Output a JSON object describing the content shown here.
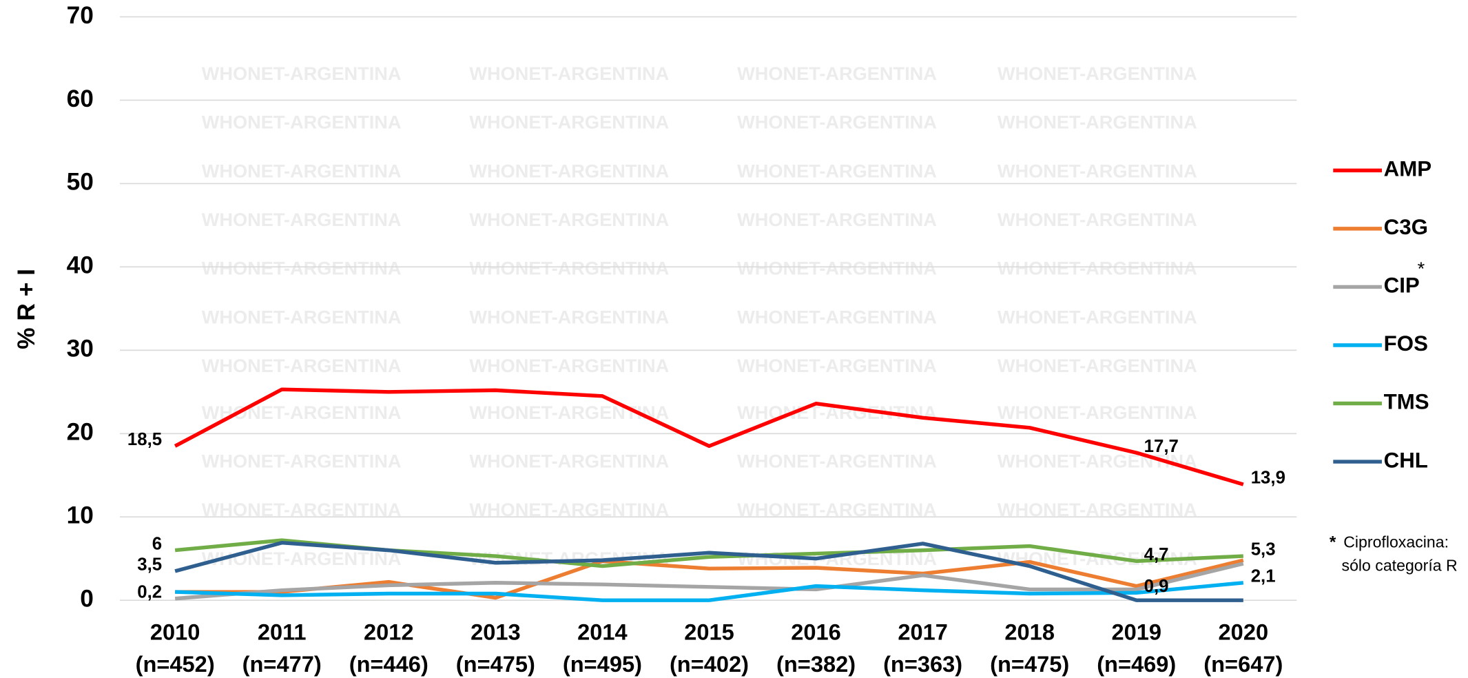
{
  "chart_data": {
    "type": "line",
    "y_axis_label": "% R + I",
    "categories": [
      "2010",
      "2011",
      "2012",
      "2013",
      "2014",
      "2015",
      "2016",
      "2017",
      "2018",
      "2019",
      "2020"
    ],
    "sample_sizes": [
      "(n=452)",
      "(n=477)",
      "(n=446)",
      "(n=475)",
      "(n=495)",
      "(n=402)",
      "(n=382)",
      "(n=363)",
      "(n=475)",
      "(n=469)",
      "(n=647)"
    ],
    "ylim": [
      0,
      70
    ],
    "yticks": [
      0,
      10,
      20,
      30,
      40,
      50,
      60,
      70
    ],
    "grid": true,
    "legend": "right",
    "watermark": "WHONET-ARGENTINA",
    "footnote_marker": "*",
    "footnote": [
      "Ciprofloxacina:",
      "sólo categoría R"
    ],
    "series": [
      {
        "name": "AMP",
        "color": "#ff0000",
        "values": [
          18.5,
          25.3,
          25.0,
          25.2,
          24.5,
          18.5,
          23.6,
          21.9,
          20.7,
          17.7,
          13.9
        ],
        "value_labels": [
          "18,5",
          null,
          null,
          null,
          null,
          null,
          null,
          null,
          null,
          "17,7",
          "13,9"
        ]
      },
      {
        "name": "C3G",
        "color": "#ed7d31",
        "values": [
          1.0,
          1.0,
          2.2,
          0.3,
          4.7,
          3.8,
          3.9,
          3.2,
          4.6,
          1.7,
          4.8
        ]
      },
      {
        "name": "CIP",
        "note": "*",
        "color": "#a5a5a5",
        "values": [
          0.2,
          1.2,
          1.8,
          2.1,
          1.9,
          1.6,
          1.3,
          3.0,
          1.3,
          1.3,
          4.4
        ],
        "value_labels": [
          "0,2",
          null,
          null,
          null,
          null,
          null,
          null,
          null,
          null,
          null,
          null
        ]
      },
      {
        "name": "FOS",
        "color": "#00b0f0",
        "values": [
          1.0,
          0.6,
          0.8,
          0.8,
          0.0,
          0.0,
          1.7,
          1.2,
          0.8,
          0.9,
          2.1
        ],
        "value_labels": [
          null,
          null,
          null,
          null,
          null,
          null,
          null,
          null,
          null,
          "0,9",
          "2,1"
        ]
      },
      {
        "name": "TMS",
        "color": "#70ad47",
        "values": [
          6,
          7.2,
          6.0,
          5.3,
          4.1,
          5.2,
          5.6,
          6.0,
          6.5,
          4.7,
          5.3
        ],
        "value_labels": [
          "6",
          null,
          null,
          null,
          null,
          null,
          null,
          null,
          null,
          "4,7",
          "5,3"
        ]
      },
      {
        "name": "CHL",
        "color": "#2e5f8f",
        "values": [
          3.5,
          6.9,
          6.0,
          4.5,
          4.8,
          5.7,
          5.0,
          6.8,
          4.1,
          0.0,
          0.0
        ],
        "value_labels": [
          "3,5",
          null,
          null,
          null,
          null,
          null,
          null,
          null,
          null,
          null,
          null
        ]
      }
    ]
  }
}
